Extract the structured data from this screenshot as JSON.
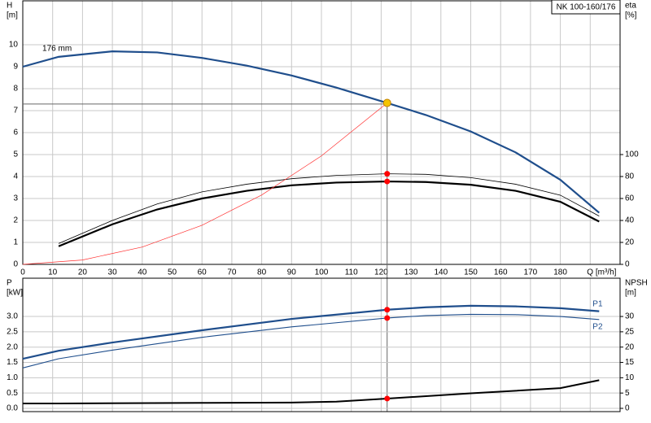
{
  "chart_data": [
    {
      "type": "line",
      "title": "NK 100-160/176",
      "ylabel": "H",
      "yunit": "[m]",
      "y2label": "eta",
      "y2unit": "[%]",
      "annotation": "176 mm",
      "xlim": [
        0,
        200
      ],
      "xticks": [
        0,
        10,
        20,
        30,
        40,
        50,
        60,
        70,
        80,
        90,
        100,
        110,
        120,
        130,
        140,
        150,
        160,
        170,
        180,
        {
          "value": 190,
          "label": "Q [m³/h]"
        }
      ],
      "ylim": [
        0,
        12
      ],
      "yticks": [
        0,
        1,
        2,
        3,
        4,
        5,
        6,
        7,
        8,
        9,
        10
      ],
      "y2lim": [
        0,
        240
      ],
      "y2ticks": [
        0,
        20,
        40,
        60,
        80,
        100
      ],
      "grid": true,
      "series": [
        {
          "color": "#1f4e8c",
          "x": [
            0,
            12,
            30,
            45,
            60,
            75,
            90,
            105,
            122,
            135,
            150,
            165,
            180,
            193
          ],
          "values": [
            9.0,
            9.45,
            9.7,
            9.65,
            9.4,
            9.05,
            8.6,
            8.05,
            7.35,
            6.8,
            6.05,
            5.1,
            3.85,
            2.35
          ]
        },
        {
          "color": "#000000",
          "axis": "y2",
          "x": [
            12,
            30,
            45,
            60,
            75,
            90,
            105,
            122,
            135,
            150,
            165,
            180,
            193
          ],
          "values": [
            19,
            40,
            55,
            66,
            73,
            78,
            81,
            82.5,
            82,
            79,
            73,
            63,
            44
          ]
        },
        {
          "color": "#000000",
          "axis": "y2",
          "x": [
            12,
            30,
            45,
            60,
            75,
            90,
            105,
            122,
            135,
            150,
            165,
            180,
            193
          ],
          "values": [
            16.5,
            36.5,
            50,
            60,
            67,
            72,
            74.5,
            75.5,
            75,
            72.5,
            67,
            57,
            39
          ]
        },
        {
          "color": "#ff3030",
          "x": [
            0,
            20,
            40,
            60,
            80,
            100,
            122
          ],
          "values": [
            0,
            0.2,
            0.79,
            1.78,
            3.16,
            4.94,
            7.35
          ]
        }
      ],
      "reference_lines": {
        "x": 122,
        "y": 7.3
      },
      "markers": [
        {
          "color": "#f5c400",
          "x": 122,
          "y": 7.35
        },
        {
          "color": "#ff0000",
          "axis": "y2",
          "x": 122,
          "y": 82.5
        },
        {
          "color": "#ff0000",
          "axis": "y2",
          "x": 122,
          "y": 75.5
        }
      ]
    },
    {
      "type": "line",
      "ylabel": "P",
      "yunit": "[kW]",
      "y2label": "NPSH",
      "y2unit": "[m]",
      "xlim": [
        0,
        200
      ],
      "ylim": [
        0,
        4.25
      ],
      "yticks": [
        {
          "value": 0,
          "label": "0.0"
        },
        0.5,
        {
          "value": 1,
          "label": "1.0"
        },
        1.5,
        {
          "value": 2,
          "label": "2.0"
        },
        2.5,
        {
          "value": 3,
          "label": "3.0"
        }
      ],
      "y2lim": [
        0,
        42.5
      ],
      "y2ticks": [
        0,
        5,
        10,
        15,
        20,
        25,
        30
      ],
      "grid": true,
      "series": [
        {
          "name": "P1",
          "color": "#1f4e8c",
          "x": [
            0,
            12,
            30,
            60,
            90,
            122,
            135,
            150,
            165,
            180,
            193
          ],
          "values": [
            1.62,
            1.88,
            2.15,
            2.55,
            2.92,
            3.22,
            3.3,
            3.35,
            3.33,
            3.27,
            3.17
          ]
        },
        {
          "name": "P2",
          "color": "#1f4e8c",
          "x": [
            0,
            12,
            30,
            60,
            90,
            122,
            135,
            150,
            165,
            180,
            193
          ],
          "values": [
            1.32,
            1.62,
            1.9,
            2.32,
            2.66,
            2.95,
            3.03,
            3.07,
            3.06,
            3.0,
            2.9
          ]
        },
        {
          "color": "#000000",
          "axis": "y2",
          "x": [
            0,
            12,
            60,
            90,
            105,
            122,
            150,
            180,
            193
          ],
          "values": [
            1.6,
            1.6,
            1.8,
            1.9,
            2.2,
            3.2,
            4.9,
            6.6,
            9.2
          ]
        }
      ],
      "markers": [
        {
          "color": "#ff0000",
          "x": 122,
          "y": 3.22
        },
        {
          "color": "#ff0000",
          "x": 122,
          "y": 2.95
        },
        {
          "color": "#ff0000",
          "axis": "y2",
          "x": 122,
          "y": 3.2
        }
      ]
    }
  ]
}
